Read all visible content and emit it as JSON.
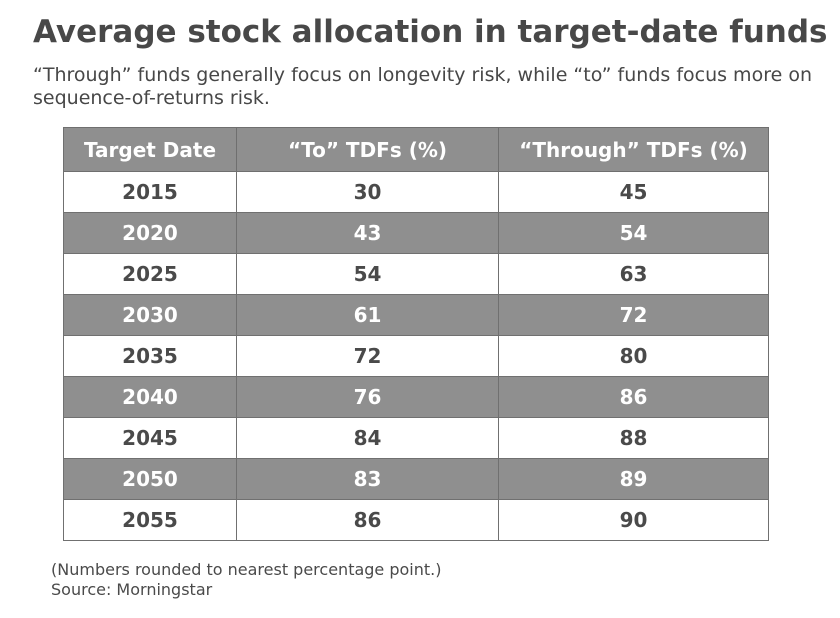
{
  "title": "Average stock allocation in target-date funds",
  "subtitle": "“Through” funds generally focus on longevity risk, while “to” funds focus more on sequence-of-returns risk.",
  "notes": {
    "rounding": "(Numbers rounded to nearest percentage point.)",
    "source": "Source: Morningstar"
  },
  "chart_data": {
    "type": "table",
    "title": "Average stock allocation in target-date funds",
    "columns": [
      "Target Date",
      "“To” TDFs (%)",
      "“Through” TDFs (%)"
    ],
    "rows": [
      [
        "2015",
        "30",
        "45"
      ],
      [
        "2020",
        "43",
        "54"
      ],
      [
        "2025",
        "54",
        "63"
      ],
      [
        "2030",
        "61",
        "72"
      ],
      [
        "2035",
        "72",
        "80"
      ],
      [
        "2040",
        "76",
        "86"
      ],
      [
        "2045",
        "84",
        "88"
      ],
      [
        "2050",
        "83",
        "89"
      ],
      [
        "2055",
        "86",
        "90"
      ]
    ]
  }
}
